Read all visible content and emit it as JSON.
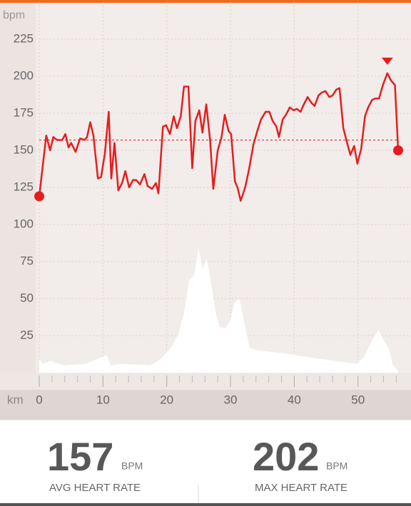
{
  "chart_data": {
    "type": "line",
    "ylabel": "bpm",
    "xlabel": "km",
    "xlim": [
      0,
      56.3
    ],
    "ylim": [
      0,
      250
    ],
    "xticks": [
      0,
      10,
      20,
      30,
      40,
      50
    ],
    "xminorticks": [
      2,
      4,
      6,
      8,
      12,
      14,
      16,
      18,
      22,
      24,
      26,
      28,
      32,
      34,
      36,
      38,
      42,
      44,
      46,
      48,
      52,
      54,
      56
    ],
    "yticks": [
      25,
      50,
      75,
      100,
      125,
      150,
      175,
      200,
      225
    ],
    "grid": true,
    "series": [
      {
        "color": "#e41e1e",
        "x": [
          0,
          1.1,
          1.7,
          2.2,
          2.8,
          3.6,
          4.1,
          4.6,
          5.0,
          5.7,
          6.4,
          7.1,
          7.5,
          8.0,
          8.5,
          9.2,
          9.7,
          10.3,
          10.9,
          11.3,
          11.8,
          12.4,
          13.0,
          13.5,
          14.1,
          14.7,
          15.2,
          15.8,
          16.5,
          17.0,
          17.7,
          18.3,
          18.7,
          19.4,
          19.9,
          20.5,
          21.1,
          21.6,
          22.2,
          22.7,
          23.4,
          24.0,
          24.5,
          25.1,
          25.6,
          26.2,
          26.8,
          27.3,
          28.0,
          28.6,
          29.1,
          29.7,
          30.1,
          30.7,
          31.1,
          31.6,
          32.3,
          32.9,
          33.6,
          34.2,
          34.8,
          35.5,
          36.1,
          36.6,
          37.2,
          37.6,
          38.2,
          38.7,
          39.3,
          39.9,
          40.4,
          41.0,
          41.5,
          42.1,
          42.7,
          43.2,
          43.8,
          44.3,
          44.9,
          45.5,
          46.0,
          46.6,
          47.1,
          47.7,
          48.3,
          48.8,
          49.4,
          49.9,
          50.5,
          51.1,
          51.6,
          52.2,
          52.7,
          53.3,
          53.9,
          54.6,
          55.2,
          55.8,
          56.3
        ],
        "values": [
          119,
          160,
          150,
          159,
          157,
          157,
          161,
          152,
          155,
          149,
          158,
          157,
          159,
          169,
          160,
          131,
          132,
          148,
          176,
          131,
          155,
          123,
          128,
          136,
          125,
          130,
          130,
          127,
          134,
          126,
          124,
          128,
          121,
          166,
          167,
          161,
          173,
          165,
          173,
          193,
          193,
          138,
          170,
          177,
          162,
          181,
          157,
          124,
          150,
          159,
          174,
          163,
          161,
          129,
          125,
          116,
          125,
          137,
          154,
          163,
          171,
          176,
          176,
          170,
          166,
          159,
          171,
          174,
          179,
          177,
          178,
          176,
          181,
          186,
          182,
          180,
          187,
          189,
          190,
          186,
          187,
          191,
          192,
          165,
          155,
          147,
          153,
          141,
          151,
          173,
          179,
          184,
          185,
          185,
          194,
          202,
          197,
          194,
          150
        ]
      },
      {
        "color": "#ffffff",
        "x": [
          0,
          0.6,
          1.7,
          3.9,
          7.3,
          10.6,
          11.2,
          12.9,
          17.4,
          19.0,
          20.7,
          21.8,
          22.7,
          23.5,
          24.3,
          25.0,
          25.6,
          26.3,
          27.0,
          27.7,
          28.3,
          29.2,
          29.9,
          30.6,
          31.4,
          32.1,
          33.0,
          34.2,
          38.6,
          43.1,
          46.5,
          49.8,
          51.0,
          52.1,
          53.2,
          54.0,
          54.9,
          55.4,
          56.3
        ],
        "values": [
          9,
          6,
          8,
          5,
          6,
          12,
          5,
          6,
          5,
          9,
          17,
          26,
          40,
          62,
          66,
          84,
          70,
          77,
          59,
          40,
          31,
          30,
          35,
          47,
          50,
          35,
          17,
          15,
          13,
          10,
          8,
          6,
          11,
          21,
          29,
          22,
          16,
          6,
          1
        ]
      }
    ]
  },
  "stats": [
    {
      "value": 157,
      "unit": "BPM",
      "label": "AVG HEART RATE"
    },
    {
      "value": 202,
      "unit": "BPM",
      "label": "MAX HEART RATE"
    }
  ]
}
